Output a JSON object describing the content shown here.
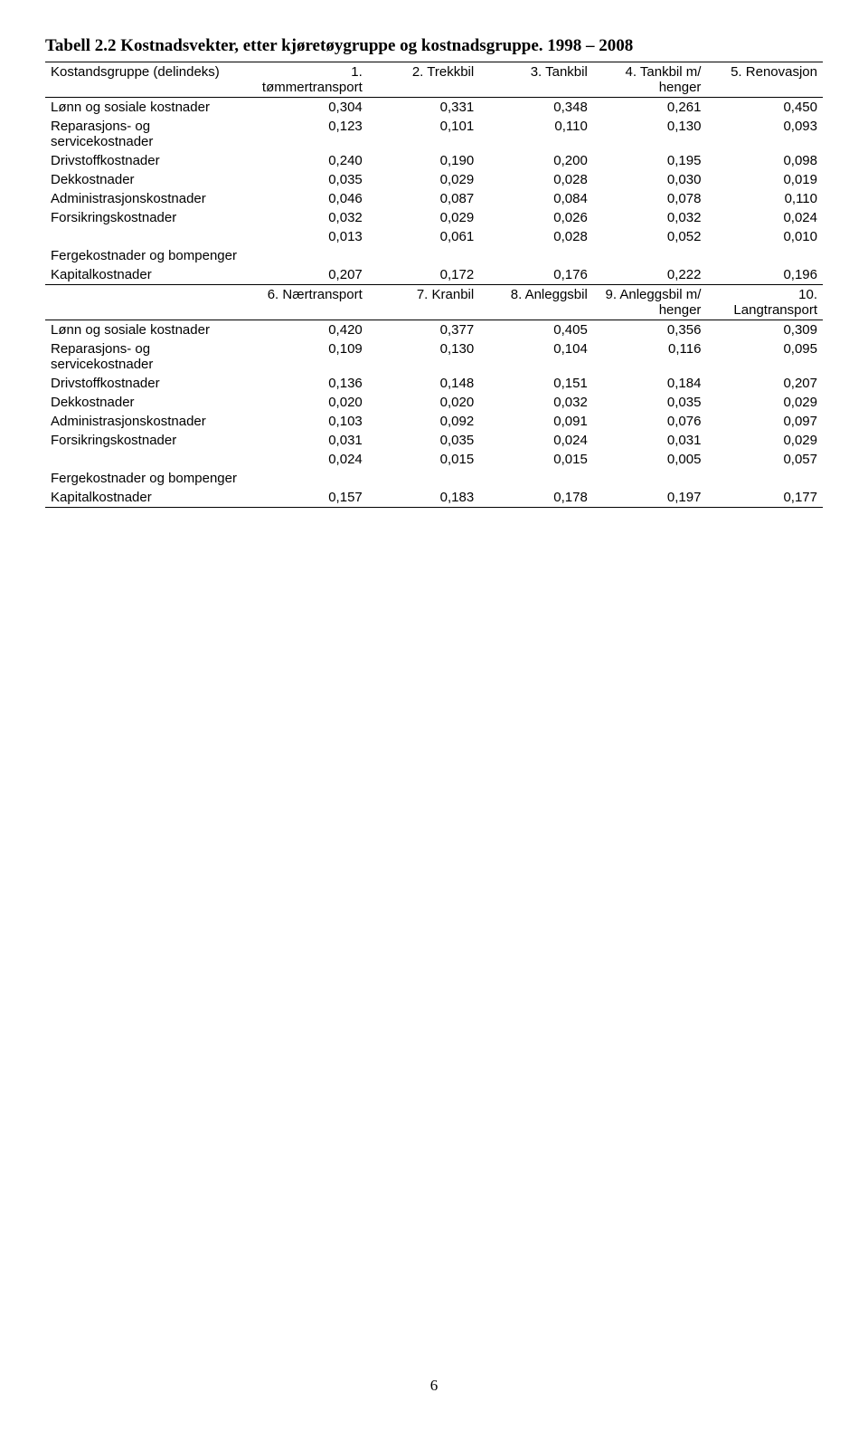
{
  "title": "Tabell 2.2 Kostnadsvekter, etter kjøretøygruppe og kostnadsgruppe. 1998 – 2008",
  "header1": {
    "label": "Kostandsgruppe (delindeks)",
    "cols": [
      "1. tømmertransport",
      "2. Trekkbil",
      "3. Tankbil",
      "4. Tankbil m/ henger",
      "5. Renovasjon"
    ]
  },
  "rows1": [
    {
      "label": "Lønn og sosiale kostnader",
      "vals": [
        "0,304",
        "0,331",
        "0,348",
        "0,261",
        "0,450"
      ]
    },
    {
      "label": "Reparasjons- og servicekostnader",
      "vals": [
        "0,123",
        "0,101",
        "0,110",
        "0,130",
        "0,093"
      ]
    },
    {
      "label": "Drivstoffkostnader",
      "vals": [
        "0,240",
        "0,190",
        "0,200",
        "0,195",
        "0,098"
      ]
    },
    {
      "label": "Dekkostnader",
      "vals": [
        "0,035",
        "0,029",
        "0,028",
        "0,030",
        "0,019"
      ]
    },
    {
      "label": "Administrasjonskostnader",
      "vals": [
        "0,046",
        "0,087",
        "0,084",
        "0,078",
        "0,110"
      ]
    },
    {
      "label": "Forsikringskostnader",
      "vals": [
        "0,032",
        "0,029",
        "0,026",
        "0,032",
        "0,024"
      ]
    },
    {
      "label": "Fergekostnader og bompenger",
      "vals": [
        "0,013",
        "0,061",
        "0,028",
        "0,052",
        "0,010"
      ],
      "label_below": true
    },
    {
      "label": "Kapitalkostnader",
      "vals": [
        "0,207",
        "0,172",
        "0,176",
        "0,222",
        "0,196"
      ]
    }
  ],
  "header2": {
    "cols": [
      "6. Nærtransport",
      "7. Kranbil",
      "8. Anleggsbil",
      "9. Anleggsbil m/ henger",
      "10. Langtransport"
    ]
  },
  "rows2": [
    {
      "label": "Lønn og sosiale kostnader",
      "vals": [
        "0,420",
        "0,377",
        "0,405",
        "0,356",
        "0,309"
      ]
    },
    {
      "label": "Reparasjons- og servicekostnader",
      "vals": [
        "0,109",
        "0,130",
        "0,104",
        "0,116",
        "0,095"
      ]
    },
    {
      "label": "Drivstoffkostnader",
      "vals": [
        "0,136",
        "0,148",
        "0,151",
        "0,184",
        "0,207"
      ]
    },
    {
      "label": "Dekkostnader",
      "vals": [
        "0,020",
        "0,020",
        "0,032",
        "0,035",
        "0,029"
      ]
    },
    {
      "label": "Administrasjonskostnader",
      "vals": [
        "0,103",
        "0,092",
        "0,091",
        "0,076",
        "0,097"
      ]
    },
    {
      "label": "Forsikringskostnader",
      "vals": [
        "0,031",
        "0,035",
        "0,024",
        "0,031",
        "0,029"
      ]
    },
    {
      "label": "Fergekostnader og bompenger",
      "vals": [
        "0,024",
        "0,015",
        "0,015",
        "0,005",
        "0,057"
      ],
      "label_below": true
    },
    {
      "label": "Kapitalkostnader",
      "vals": [
        "0,157",
        "0,183",
        "0,178",
        "0,197",
        "0,177"
      ]
    }
  ],
  "page_number": "6"
}
